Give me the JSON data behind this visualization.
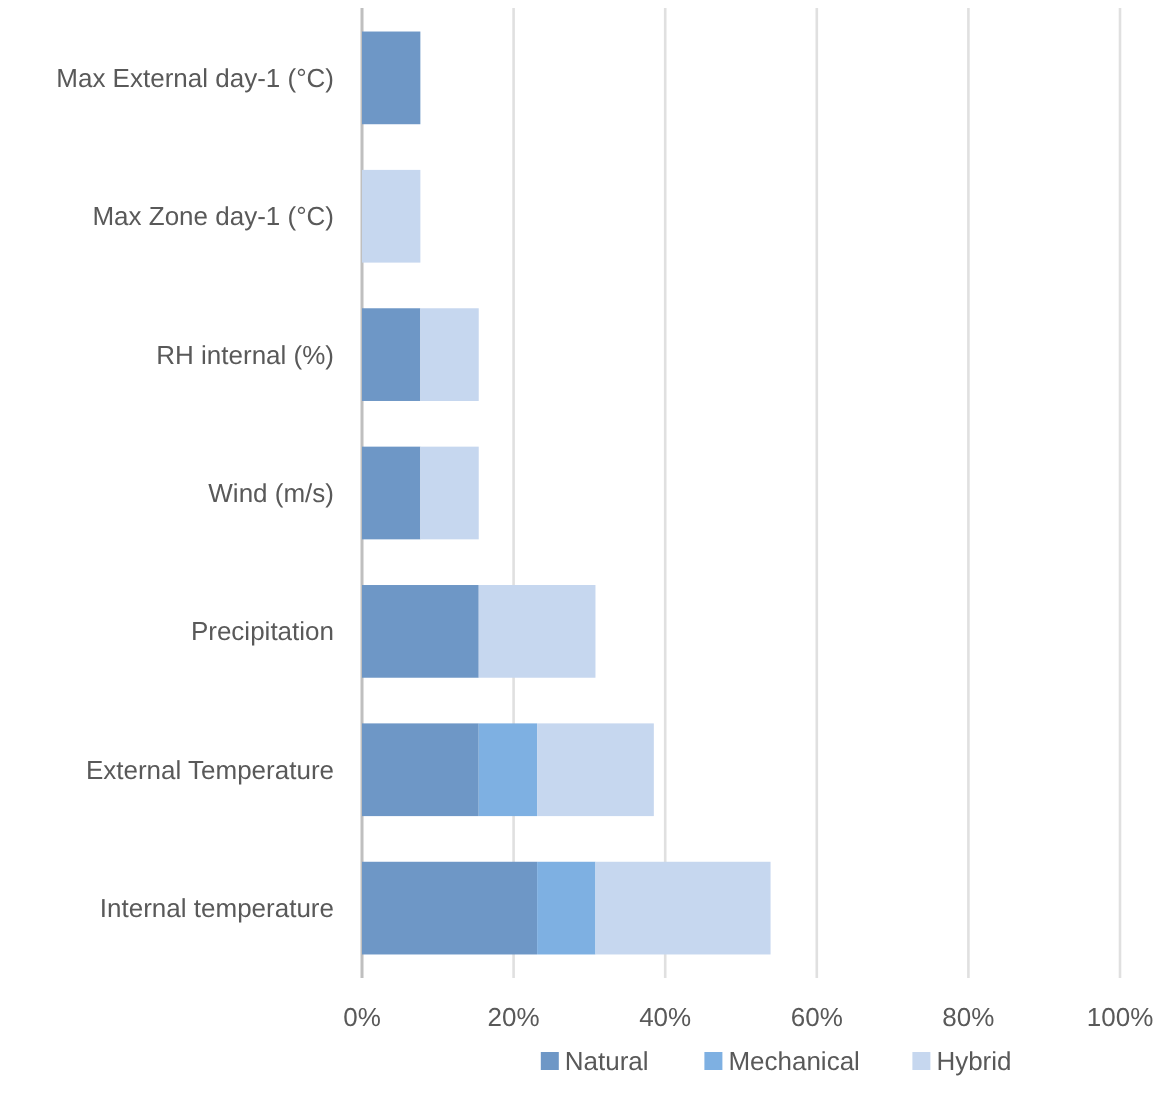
{
  "chart_data": {
    "type": "bar",
    "orientation": "horizontal",
    "stacked": true,
    "categories": [
      "Max External day-1 (°C)",
      "Max Zone day-1 (°C)",
      "RH internal (%)",
      "Wind (m/s)",
      "Precipitation",
      "External Temperature",
      "Internal temperature"
    ],
    "series": [
      {
        "name": "Natural",
        "color": "#6e97c6",
        "values": [
          7.7,
          0,
          7.7,
          7.7,
          15.4,
          15.4,
          23.1
        ]
      },
      {
        "name": "Mechanical",
        "color": "#7eb0e2",
        "values": [
          0,
          0,
          0,
          0,
          0,
          7.7,
          7.7
        ]
      },
      {
        "name": "Hybrid",
        "color": "#c6d7ef",
        "values": [
          0,
          7.7,
          7.7,
          7.7,
          15.4,
          15.4,
          23.1
        ]
      }
    ],
    "xlim": [
      0,
      100
    ],
    "xticks": [
      {
        "value": 0,
        "label": "0%"
      },
      {
        "value": 20,
        "label": "20%"
      },
      {
        "value": 40,
        "label": "40%"
      },
      {
        "value": 60,
        "label": "60%"
      },
      {
        "value": 80,
        "label": "80%"
      },
      {
        "value": 100,
        "label": "100%"
      }
    ],
    "grid": "x",
    "legend": "bottom"
  }
}
